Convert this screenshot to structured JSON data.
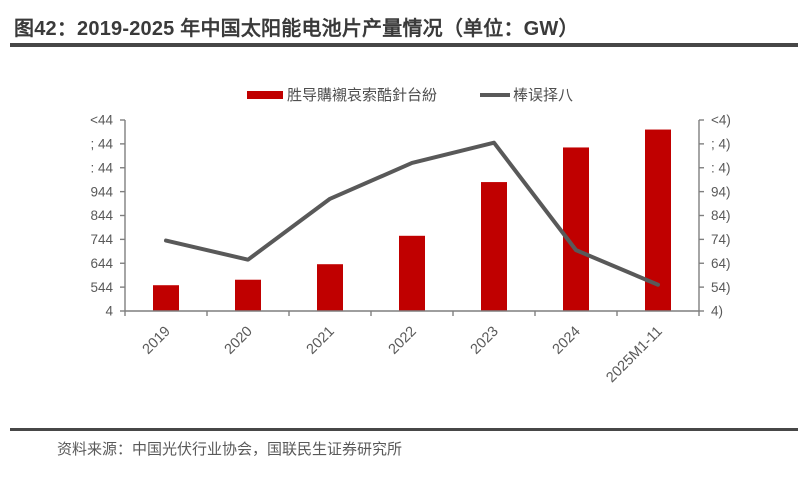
{
  "title": "图42：2019-2025 年中国太阳能电池片产量情况（单位：GW）",
  "legend": {
    "bar_label": "胜导購襯哀索酷針台紛",
    "line_label": "棒误择八"
  },
  "footer": {
    "source": "资料来源：中国光伏行业协会，国联民生证券研究所"
  },
  "colors": {
    "bar": "#c00000",
    "line": "#595959",
    "axis": "#7f7f7f",
    "tick_text": "#595959",
    "title_text": "#3a3a3a",
    "rule": "#474747"
  },
  "chart_data": {
    "type": "bar",
    "subtype": "bar-with-line-secondary-axis",
    "categories": [
      "2019",
      "2020",
      "2021",
      "2022",
      "2023",
      "2024",
      "2025M1-11"
    ],
    "series": [
      {
        "name": "胜导購襯哀索酷針台紛",
        "type": "bar",
        "axis": "left",
        "values": [
          108,
          131,
          196,
          315,
          540,
          685,
          760
        ]
      },
      {
        "name": "棒误择八",
        "type": "line",
        "axis": "right",
        "values": [
          29.5,
          21.5,
          47,
          62,
          70.5,
          25.5,
          11
        ]
      }
    ],
    "left_axis": {
      "min": 0,
      "max": 800,
      "tick_step": 100,
      "tick_labels_top_to_bottom": [
        "<44",
        "; 44",
        ": 44",
        "944",
        "844",
        "744",
        "644",
        "544",
        "4"
      ]
    },
    "right_axis": {
      "min": 0,
      "max": 80,
      "tick_step": 10,
      "tick_labels_top_to_bottom": [
        "<4)",
        "; 4)",
        ": 4)",
        "94)",
        "84)",
        "74)",
        "64)",
        "54)",
        "4)"
      ]
    },
    "grid": "off",
    "legend_position": "top-center",
    "x_label_rotation_deg": -45
  }
}
